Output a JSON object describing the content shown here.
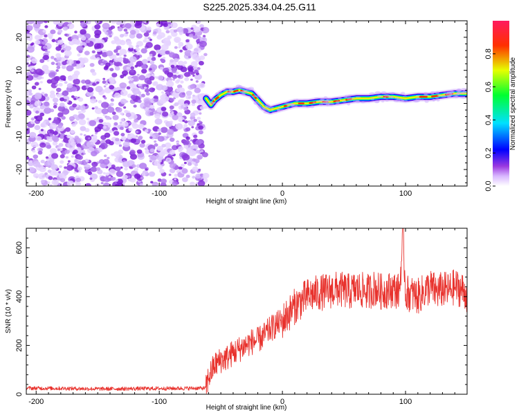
{
  "title": "S225.2025.334.04.25.G11",
  "chart_data": [
    {
      "id": "spectrogram",
      "type": "heatmap",
      "xlabel": "Height of straight line (km)",
      "ylabel": "Frequency (Hz)",
      "xlim": [
        -208,
        150
      ],
      "ylim": [
        -25,
        25
      ],
      "xticks": [
        -200,
        -100,
        0,
        100
      ],
      "yticks": [
        -20,
        -10,
        0,
        10,
        20
      ],
      "noise_region_x": [
        -208,
        -62
      ],
      "ridge": {
        "x": [
          -62,
          -58,
          -55,
          -50,
          -45,
          -40,
          -35,
          -30,
          -25,
          -20,
          -15,
          -10,
          -5,
          0,
          5,
          10,
          20,
          30,
          40,
          50,
          60,
          70,
          80,
          90,
          100,
          110,
          120,
          130,
          140,
          150
        ],
        "y": [
          1.5,
          -0.5,
          1.0,
          2.5,
          3.5,
          3.5,
          4.0,
          3.5,
          3.0,
          1.0,
          -1.0,
          -2.0,
          -1.5,
          -1.0,
          -0.5,
          0.0,
          0.0,
          0.5,
          0.5,
          1.0,
          1.5,
          1.5,
          2.0,
          2.0,
          1.5,
          2.0,
          2.0,
          2.5,
          3.0,
          3.0
        ]
      },
      "colorbar": {
        "label": "Normalized spectral amplitude",
        "range": [
          0,
          1
        ],
        "ticks": [
          "0.0",
          "0.2",
          "0.4",
          "0.6",
          "0.8"
        ]
      }
    },
    {
      "id": "snr",
      "type": "line",
      "xlabel": "Height of straight line (km)",
      "ylabel": "SNR (10 * v/v)",
      "xlim": [
        -208,
        150
      ],
      "ylim": [
        0,
        680
      ],
      "xticks": [
        -200,
        -100,
        0,
        100
      ],
      "yticks": [
        0,
        200,
        400,
        600
      ],
      "color": "#e8322d",
      "series": [
        {
          "name": "SNR",
          "x": [
            -208,
            -180,
            -150,
            -120,
            -90,
            -62,
            -60,
            -55,
            -50,
            -45,
            -40,
            -35,
            -30,
            -25,
            -20,
            -15,
            -10,
            -5,
            0,
            5,
            10,
            15,
            20,
            25,
            30,
            35,
            40,
            45,
            50,
            55,
            60,
            65,
            70,
            75,
            80,
            85,
            90,
            95,
            98,
            100,
            105,
            110,
            115,
            120,
            125,
            130,
            135,
            140,
            145,
            150
          ],
          "y": [
            25,
            24,
            22,
            23,
            24,
            25,
            70,
            120,
            140,
            150,
            170,
            185,
            200,
            215,
            220,
            240,
            265,
            285,
            300,
            330,
            360,
            380,
            400,
            410,
            415,
            420,
            425,
            430,
            425,
            420,
            430,
            425,
            420,
            435,
            420,
            425,
            430,
            420,
            650,
            415,
            410,
            400,
            420,
            440,
            420,
            430,
            425,
            440,
            430,
            410
          ]
        }
      ]
    }
  ]
}
